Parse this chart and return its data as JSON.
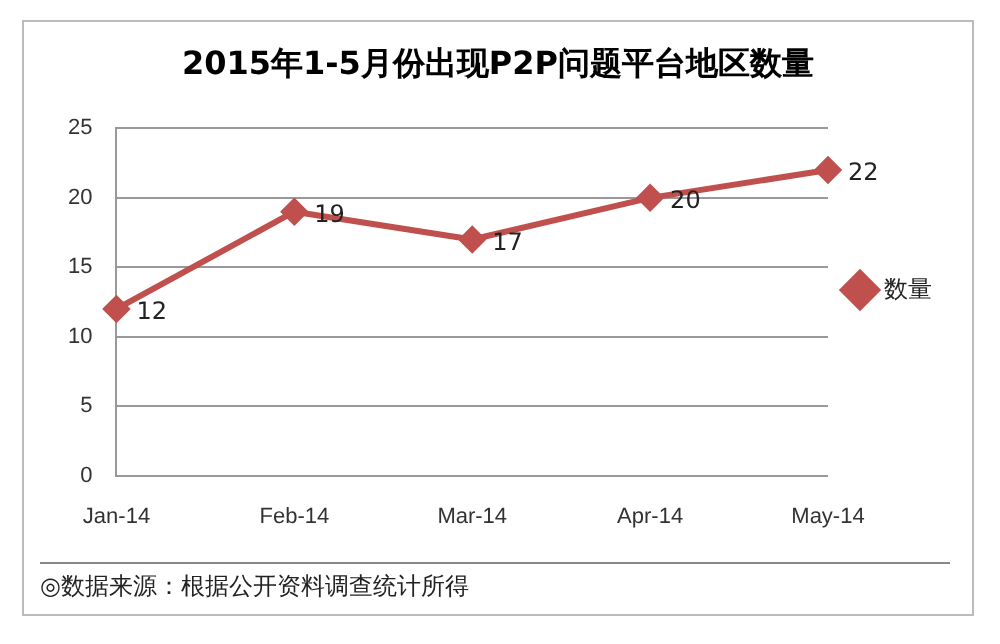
{
  "chart_data": {
    "type": "line",
    "title": "2015年1-5月份出现P2P问题平台地区数量",
    "categories": [
      "Jan-14",
      "Feb-14",
      "Mar-14",
      "Apr-14",
      "May-14"
    ],
    "series": [
      {
        "name": "数量",
        "color": "#c0504d",
        "values": [
          12,
          19,
          17,
          20,
          22
        ]
      }
    ],
    "ylim": [
      0,
      25
    ],
    "yticks": [
      0,
      5,
      10,
      15,
      20,
      25
    ],
    "grid": "y",
    "legend": "right",
    "marker": "diamond",
    "line_style": "solid",
    "data_labels": true,
    "annotations": [
      "◎数据来源：根据公开资料调查统计所得"
    ]
  }
}
